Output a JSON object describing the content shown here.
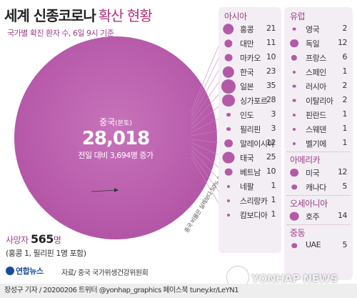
{
  "header": {
    "title": "세계 신종코로나",
    "title_sub": "확산 현황",
    "subtitle": "국가별 확진 환자 수, 6일 9시 기준"
  },
  "china": {
    "name": "중국",
    "name_note": "(본토)",
    "total": "28,018",
    "increase": "전일 대비 3,694명 증가",
    "ratio_note": "중국 비율은 실제보다 50% 이하 축소"
  },
  "deaths": {
    "label": "사망자",
    "value": "565",
    "unit": "명",
    "note": "(홍콩 1, 필리핀 1명 포함)"
  },
  "source": "자료/ 중국 국가위생건강위원회",
  "logo_text": "연합뉴스",
  "footer": "장성구 기자 / 20200206 트위터 @yonhap_graphics 페이스북 tuney.kr/LeYN1",
  "watermark": "YONHAP NEWS",
  "colors": {
    "accent": "#9c3d87",
    "bubble": "#b35aa6",
    "panel": "#f3eef4",
    "china_circle": "#c265b4"
  },
  "chart_data": {
    "type": "bubble",
    "title": "세계 신종코로나 확산 현황",
    "subtitle": "국가별 확진 환자 수, 6일 9시 기준",
    "china": {
      "name": "중국",
      "value": 28018
    },
    "regions": [
      {
        "name": "아시아",
        "countries": [
          {
            "name": "홍콩",
            "value": 21
          },
          {
            "name": "대만",
            "value": 11
          },
          {
            "name": "마카오",
            "value": 10
          },
          {
            "name": "한국",
            "value": 23
          },
          {
            "name": "일본",
            "value": 35
          },
          {
            "name": "싱가포르",
            "value": 28
          },
          {
            "name": "인도",
            "value": 3
          },
          {
            "name": "필리핀",
            "value": 3
          },
          {
            "name": "말레이시아",
            "value": 12
          },
          {
            "name": "태국",
            "value": 25
          },
          {
            "name": "베트남",
            "value": 10
          },
          {
            "name": "네팔",
            "value": 1
          },
          {
            "name": "스리랑카",
            "value": 1
          },
          {
            "name": "캄보디아",
            "value": 1
          }
        ]
      },
      {
        "name": "유럽",
        "countries": [
          {
            "name": "영국",
            "value": 2
          },
          {
            "name": "독일",
            "value": 12
          },
          {
            "name": "프랑스",
            "value": 6
          },
          {
            "name": "스페인",
            "value": 1
          },
          {
            "name": "러시아",
            "value": 2
          },
          {
            "name": "이탈리아",
            "value": 2
          },
          {
            "name": "핀란드",
            "value": 1
          },
          {
            "name": "스웨덴",
            "value": 1
          },
          {
            "name": "벨기에",
            "value": 1
          }
        ]
      },
      {
        "name": "아메리카",
        "countries": [
          {
            "name": "미국",
            "value": 12
          },
          {
            "name": "캐나다",
            "value": 5
          }
        ]
      },
      {
        "name": "오세아니아",
        "countries": [
          {
            "name": "호주",
            "value": 14
          }
        ]
      },
      {
        "name": "중동",
        "countries": [
          {
            "name": "UAE",
            "value": 5
          }
        ]
      }
    ]
  }
}
